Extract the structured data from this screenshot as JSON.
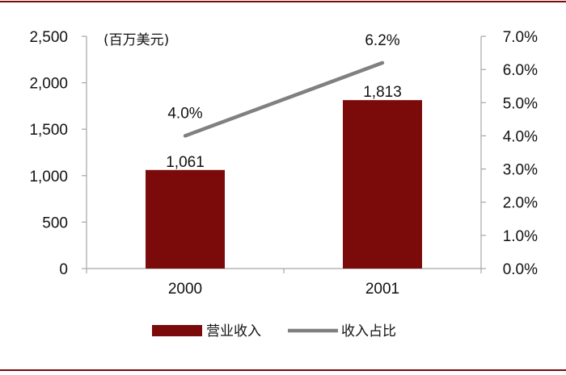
{
  "chart_data": {
    "type": "bar",
    "categories": [
      "2000",
      "2001"
    ],
    "series": [
      {
        "name": "营业收入",
        "type": "bar",
        "axis": "left",
        "color": "#7b0b0b",
        "values": [
          1061,
          1813
        ],
        "labels": [
          "1,061",
          "1,813"
        ]
      },
      {
        "name": "收入占比",
        "type": "line",
        "axis": "right",
        "color": "#808080",
        "values": [
          4.0,
          6.2
        ],
        "labels": [
          "4.0%",
          "6.2%"
        ]
      }
    ],
    "unit_label": "(百万美元)",
    "y_left": {
      "ylim": [
        0,
        2500
      ],
      "ticks": [
        0,
        500,
        1000,
        1500,
        2000,
        2500
      ],
      "tick_labels": [
        "0",
        "500",
        "1,000",
        "1,500",
        "2,000",
        "2,500"
      ]
    },
    "y_right": {
      "ylim": [
        0,
        7
      ],
      "ticks": [
        0,
        1,
        2,
        3,
        4,
        5,
        6,
        7
      ],
      "tick_labels": [
        "0.0%",
        "1.0%",
        "2.0%",
        "3.0%",
        "4.0%",
        "5.0%",
        "6.0%",
        "7.0%"
      ]
    },
    "legend_position": "bottom",
    "grid": false
  },
  "frame_color": "#7b0b0b"
}
